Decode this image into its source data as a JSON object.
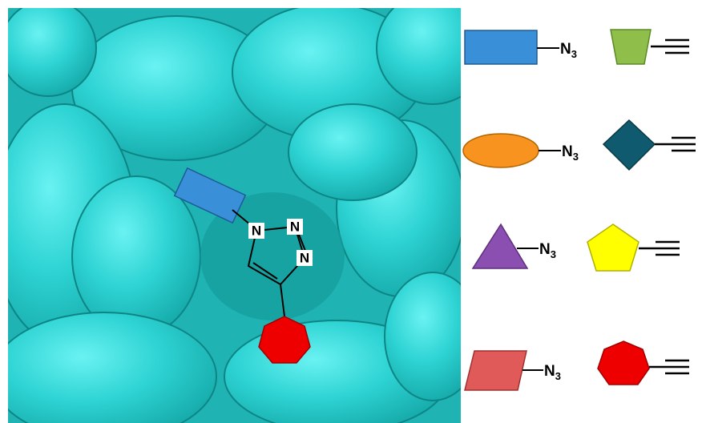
{
  "triazole": {
    "atoms": [
      "N",
      "N",
      "N"
    ]
  },
  "legend": {
    "azides": [
      {
        "symbol": "N",
        "subscript": "3"
      },
      {
        "symbol": "N",
        "subscript": "3"
      },
      {
        "symbol": "N",
        "subscript": "3"
      },
      {
        "symbol": "N",
        "subscript": "3"
      }
    ]
  }
}
